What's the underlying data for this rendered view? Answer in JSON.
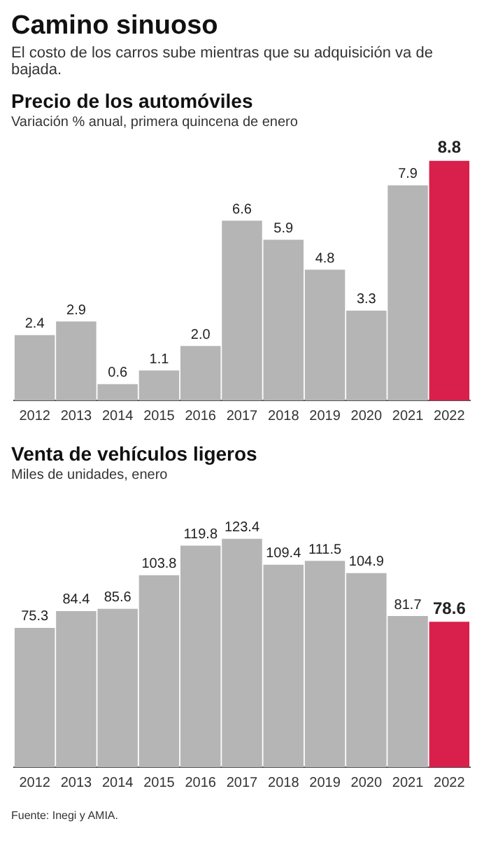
{
  "chart_data": [
    {
      "type": "other",
      "title": "Camino sinuoso",
      "subtitle": "El costo de los carros sube mientras que su adquisición va de bajada."
    },
    {
      "type": "bar",
      "title": "Precio de los automóviles",
      "subtitle": "Variación % anual, primera quincena de enero",
      "categories": [
        "2012",
        "2013",
        "2014",
        "2015",
        "2016",
        "2017",
        "2018",
        "2019",
        "2020",
        "2021",
        "2022"
      ],
      "values": [
        2.4,
        2.9,
        0.6,
        1.1,
        2.0,
        6.6,
        5.9,
        4.8,
        3.3,
        7.9,
        8.8
      ],
      "value_labels": [
        "2.4",
        "2.9",
        "0.6",
        "1.1",
        "2.0",
        "6.6",
        "5.9",
        "4.8",
        "3.3",
        "7.9",
        "8.8"
      ],
      "colors": [
        "#b5b5b5",
        "#b5b5b5",
        "#b5b5b5",
        "#b5b5b5",
        "#b5b5b5",
        "#b5b5b5",
        "#b5b5b5",
        "#b5b5b5",
        "#b5b5b5",
        "#b5b5b5",
        "#d91f4b"
      ],
      "grid": false,
      "tick_labels": "x"
    },
    {
      "type": "bar",
      "title": "Venta de vehículos ligeros",
      "subtitle": "Miles de unidades, enero",
      "categories": [
        "2012",
        "2013",
        "2014",
        "2015",
        "2016",
        "2017",
        "2018",
        "2019",
        "2020",
        "2021",
        "2022"
      ],
      "values": [
        75.3,
        84.4,
        85.6,
        103.8,
        119.8,
        123.4,
        109.4,
        111.5,
        104.9,
        81.7,
        78.6
      ],
      "value_labels": [
        "75.3",
        "84.4",
        "85.6",
        "103.8",
        "119.8",
        "123.4",
        "109.4",
        "111.5",
        "104.9",
        "81.7",
        "78.6"
      ],
      "colors": [
        "#b5b5b5",
        "#b5b5b5",
        "#b5b5b5",
        "#b5b5b5",
        "#b5b5b5",
        "#b5b5b5",
        "#b5b5b5",
        "#b5b5b5",
        "#b5b5b5",
        "#b5b5b5",
        "#d91f4b"
      ],
      "grid": false,
      "tick_labels": "x",
      "annotations": [
        "Fuente: Inegi y AMIA."
      ]
    }
  ]
}
